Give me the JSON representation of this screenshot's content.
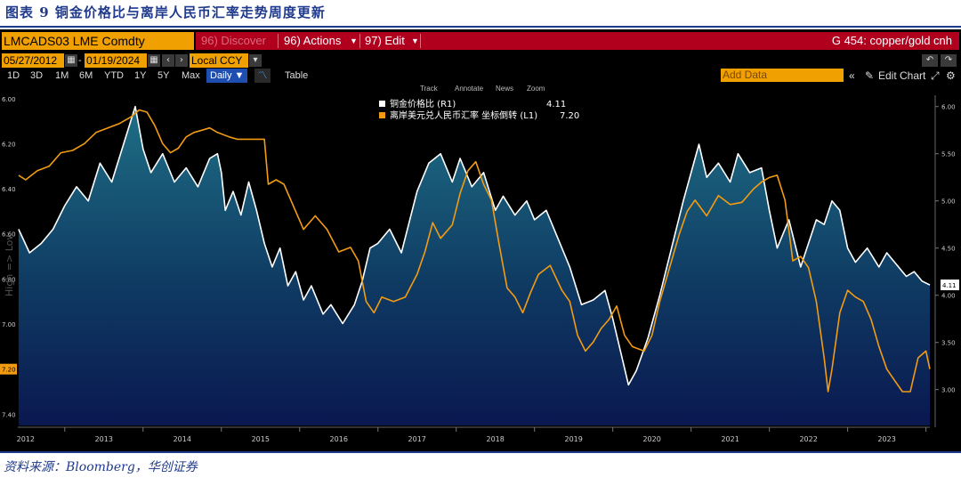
{
  "figure_title": "图表 9 铜金价格比与离岸人民币汇率走势周度更新",
  "source_note": "资料来源：Bloomberg，华创证券",
  "terminal": {
    "ticker": "LMCADS03 LME Comdty",
    "discover_label": "96) Discover",
    "actions_label": "96) Actions",
    "edit_label": "97) Edit",
    "chart_name": "G 454: copper/gold cnh",
    "start_date": "05/27/2012",
    "end_date": "01/19/2024",
    "currency": "Local CCY",
    "periods": [
      "1D",
      "3D",
      "1M",
      "6M",
      "YTD",
      "1Y",
      "5Y",
      "Max"
    ],
    "frequency": "Daily",
    "table_label": "Table",
    "add_data_placeholder": "Add Data",
    "edit_chart_label": "Edit Chart",
    "plot_tools": [
      "Track",
      "Annotate",
      "News",
      "Zoom"
    ],
    "side_label": "High => Low",
    "colors": {
      "accent": "#f0a000",
      "menubar": "#b0001e",
      "series_white": "#ffffff",
      "series_orange": "#f39c12"
    }
  },
  "chart_data": {
    "type": "line",
    "title": "",
    "x_ticks": [
      "2012",
      "2013",
      "2014",
      "2015",
      "2016",
      "2017",
      "2018",
      "2019",
      "2020",
      "2021",
      "2022",
      "2023"
    ],
    "xlim": [
      2012.4,
      2024.05
    ],
    "left_axis": {
      "ticks": [
        "6.00",
        "6.20",
        "6.40",
        "6.60",
        "6.80",
        "7.00",
        "7.20",
        "7.40"
      ],
      "ylim": [
        5.985,
        7.45
      ],
      "inverted": true,
      "current_value": "7.20"
    },
    "right_axis": {
      "ticks": [
        "6.00",
        "5.50",
        "5.00",
        "4.50",
        "4.00",
        "3.50",
        "3.00"
      ],
      "ylim": [
        2.62,
        6.12
      ],
      "current_value": "4.11"
    },
    "grid": false,
    "legend_position": "top-center",
    "series": [
      {
        "name": "铜金价格比 (R1)",
        "last_value": "4.11",
        "axis": "right",
        "color": "#ffffff",
        "filled": true,
        "points": [
          [
            2012.41,
            4.7
          ],
          [
            2012.55,
            4.45
          ],
          [
            2012.7,
            4.55
          ],
          [
            2012.85,
            4.7
          ],
          [
            2013.0,
            4.95
          ],
          [
            2013.15,
            5.15
          ],
          [
            2013.3,
            5.0
          ],
          [
            2013.45,
            5.4
          ],
          [
            2013.6,
            5.2
          ],
          [
            2013.75,
            5.6
          ],
          [
            2013.9,
            6.0
          ],
          [
            2014.0,
            5.55
          ],
          [
            2014.1,
            5.3
          ],
          [
            2014.25,
            5.5
          ],
          [
            2014.4,
            5.2
          ],
          [
            2014.55,
            5.35
          ],
          [
            2014.7,
            5.15
          ],
          [
            2014.85,
            5.45
          ],
          [
            2014.95,
            5.5
          ],
          [
            2015.0,
            5.3
          ],
          [
            2015.05,
            4.9
          ],
          [
            2015.15,
            5.1
          ],
          [
            2015.25,
            4.85
          ],
          [
            2015.35,
            5.2
          ],
          [
            2015.45,
            4.9
          ],
          [
            2015.55,
            4.55
          ],
          [
            2015.65,
            4.3
          ],
          [
            2015.75,
            4.5
          ],
          [
            2015.85,
            4.1
          ],
          [
            2015.95,
            4.25
          ],
          [
            2016.05,
            3.95
          ],
          [
            2016.15,
            4.1
          ],
          [
            2016.3,
            3.8
          ],
          [
            2016.4,
            3.9
          ],
          [
            2016.55,
            3.7
          ],
          [
            2016.7,
            3.9
          ],
          [
            2016.8,
            4.15
          ],
          [
            2016.9,
            4.5
          ],
          [
            2017.0,
            4.55
          ],
          [
            2017.15,
            4.7
          ],
          [
            2017.3,
            4.45
          ],
          [
            2017.5,
            5.1
          ],
          [
            2017.65,
            5.4
          ],
          [
            2017.8,
            5.5
          ],
          [
            2017.95,
            5.2
          ],
          [
            2018.05,
            5.45
          ],
          [
            2018.2,
            5.15
          ],
          [
            2018.35,
            5.3
          ],
          [
            2018.5,
            4.9
          ],
          [
            2018.6,
            5.05
          ],
          [
            2018.75,
            4.85
          ],
          [
            2018.9,
            5.0
          ],
          [
            2019.0,
            4.8
          ],
          [
            2019.15,
            4.9
          ],
          [
            2019.3,
            4.6
          ],
          [
            2019.45,
            4.3
          ],
          [
            2019.6,
            3.9
          ],
          [
            2019.75,
            3.95
          ],
          [
            2019.9,
            4.05
          ],
          [
            2020.0,
            3.75
          ],
          [
            2020.1,
            3.4
          ],
          [
            2020.2,
            3.05
          ],
          [
            2020.3,
            3.2
          ],
          [
            2020.45,
            3.55
          ],
          [
            2020.6,
            4.0
          ],
          [
            2020.75,
            4.5
          ],
          [
            2020.9,
            5.0
          ],
          [
            2021.0,
            5.3
          ],
          [
            2021.1,
            5.6
          ],
          [
            2021.2,
            5.25
          ],
          [
            2021.35,
            5.4
          ],
          [
            2021.5,
            5.2
          ],
          [
            2021.6,
            5.5
          ],
          [
            2021.75,
            5.3
          ],
          [
            2021.9,
            5.35
          ],
          [
            2022.0,
            4.9
          ],
          [
            2022.1,
            4.5
          ],
          [
            2022.25,
            4.8
          ],
          [
            2022.4,
            4.3
          ],
          [
            2022.5,
            4.55
          ],
          [
            2022.6,
            4.8
          ],
          [
            2022.7,
            4.75
          ],
          [
            2022.8,
            5.0
          ],
          [
            2022.9,
            4.9
          ],
          [
            2023.0,
            4.5
          ],
          [
            2023.1,
            4.35
          ],
          [
            2023.25,
            4.5
          ],
          [
            2023.4,
            4.3
          ],
          [
            2023.5,
            4.45
          ],
          [
            2023.6,
            4.35
          ],
          [
            2023.75,
            4.2
          ],
          [
            2023.85,
            4.25
          ],
          [
            2023.95,
            4.15
          ],
          [
            2024.05,
            4.11
          ]
        ]
      },
      {
        "name": "离岸美元兑人民币汇率 坐标倒转 (L1)",
        "last_value": "7.20",
        "axis": "left",
        "color": "#f39c12",
        "filled": false,
        "points": [
          [
            2012.41,
            6.34
          ],
          [
            2012.5,
            6.36
          ],
          [
            2012.65,
            6.32
          ],
          [
            2012.8,
            6.3
          ],
          [
            2012.95,
            6.24
          ],
          [
            2013.1,
            6.23
          ],
          [
            2013.25,
            6.2
          ],
          [
            2013.4,
            6.15
          ],
          [
            2013.55,
            6.13
          ],
          [
            2013.7,
            6.11
          ],
          [
            2013.85,
            6.08
          ],
          [
            2013.95,
            6.05
          ],
          [
            2014.05,
            6.06
          ],
          [
            2014.15,
            6.12
          ],
          [
            2014.25,
            6.2
          ],
          [
            2014.35,
            6.24
          ],
          [
            2014.45,
            6.22
          ],
          [
            2014.55,
            6.17
          ],
          [
            2014.65,
            6.15
          ],
          [
            2014.75,
            6.14
          ],
          [
            2014.85,
            6.13
          ],
          [
            2014.95,
            6.15
          ],
          [
            2015.1,
            6.17
          ],
          [
            2015.2,
            6.18
          ],
          [
            2015.35,
            6.18
          ],
          [
            2015.45,
            6.18
          ],
          [
            2015.55,
            6.18
          ],
          [
            2015.6,
            6.38
          ],
          [
            2015.7,
            6.36
          ],
          [
            2015.8,
            6.38
          ],
          [
            2015.95,
            6.5
          ],
          [
            2016.05,
            6.58
          ],
          [
            2016.2,
            6.52
          ],
          [
            2016.35,
            6.58
          ],
          [
            2016.5,
            6.68
          ],
          [
            2016.65,
            6.66
          ],
          [
            2016.75,
            6.72
          ],
          [
            2016.85,
            6.9
          ],
          [
            2016.95,
            6.95
          ],
          [
            2017.05,
            6.88
          ],
          [
            2017.2,
            6.9
          ],
          [
            2017.35,
            6.88
          ],
          [
            2017.5,
            6.78
          ],
          [
            2017.6,
            6.68
          ],
          [
            2017.7,
            6.55
          ],
          [
            2017.8,
            6.62
          ],
          [
            2017.95,
            6.56
          ],
          [
            2018.05,
            6.42
          ],
          [
            2018.15,
            6.32
          ],
          [
            2018.25,
            6.28
          ],
          [
            2018.35,
            6.38
          ],
          [
            2018.45,
            6.45
          ],
          [
            2018.55,
            6.65
          ],
          [
            2018.65,
            6.84
          ],
          [
            2018.75,
            6.88
          ],
          [
            2018.85,
            6.95
          ],
          [
            2018.95,
            6.86
          ],
          [
            2019.05,
            6.78
          ],
          [
            2019.2,
            6.74
          ],
          [
            2019.35,
            6.85
          ],
          [
            2019.45,
            6.9
          ],
          [
            2019.55,
            7.05
          ],
          [
            2019.65,
            7.12
          ],
          [
            2019.75,
            7.08
          ],
          [
            2019.85,
            7.02
          ],
          [
            2019.95,
            6.98
          ],
          [
            2020.05,
            6.92
          ],
          [
            2020.15,
            7.05
          ],
          [
            2020.25,
            7.1
          ],
          [
            2020.4,
            7.12
          ],
          [
            2020.5,
            7.05
          ],
          [
            2020.6,
            6.9
          ],
          [
            2020.75,
            6.72
          ],
          [
            2020.85,
            6.6
          ],
          [
            2020.95,
            6.5
          ],
          [
            2021.05,
            6.45
          ],
          [
            2021.2,
            6.52
          ],
          [
            2021.35,
            6.43
          ],
          [
            2021.5,
            6.47
          ],
          [
            2021.65,
            6.46
          ],
          [
            2021.8,
            6.4
          ],
          [
            2021.9,
            6.37
          ],
          [
            2022.0,
            6.35
          ],
          [
            2022.1,
            6.34
          ],
          [
            2022.2,
            6.45
          ],
          [
            2022.3,
            6.72
          ],
          [
            2022.4,
            6.7
          ],
          [
            2022.5,
            6.75
          ],
          [
            2022.6,
            6.9
          ],
          [
            2022.7,
            7.15
          ],
          [
            2022.75,
            7.3
          ],
          [
            2022.8,
            7.2
          ],
          [
            2022.9,
            6.95
          ],
          [
            2023.0,
            6.85
          ],
          [
            2023.1,
            6.88
          ],
          [
            2023.2,
            6.9
          ],
          [
            2023.3,
            6.98
          ],
          [
            2023.4,
            7.1
          ],
          [
            2023.5,
            7.2
          ],
          [
            2023.6,
            7.25
          ],
          [
            2023.7,
            7.3
          ],
          [
            2023.8,
            7.3
          ],
          [
            2023.9,
            7.15
          ],
          [
            2024.0,
            7.12
          ],
          [
            2024.05,
            7.2
          ]
        ]
      }
    ]
  }
}
